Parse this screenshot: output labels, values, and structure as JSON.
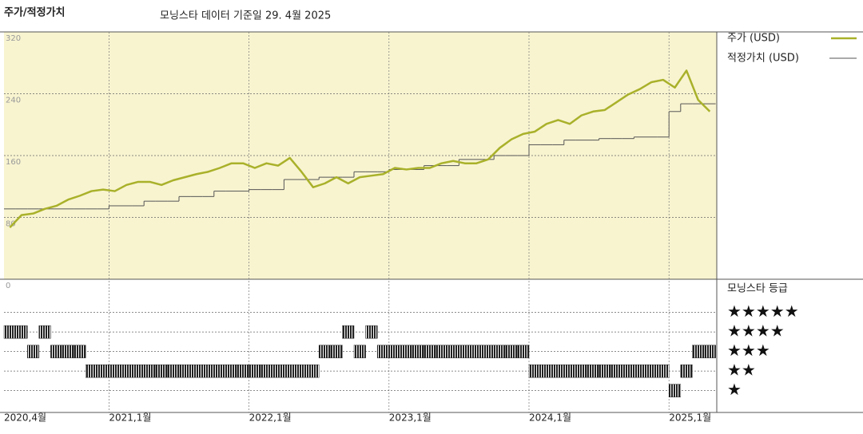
{
  "chart_data": [
    {
      "type": "line",
      "title": "주가/적정가치",
      "subtitle": "모닝스타 데이터 기준일 29. 4월 2025",
      "x": [
        "2020-04",
        "2020-05",
        "2020-06",
        "2020-07",
        "2020-08",
        "2020-09",
        "2020-10",
        "2020-11",
        "2020-12",
        "2021-01",
        "2021-02",
        "2021-03",
        "2021-04",
        "2021-05",
        "2021-06",
        "2021-07",
        "2021-08",
        "2021-09",
        "2021-10",
        "2021-11",
        "2021-12",
        "2022-01",
        "2022-02",
        "2022-03",
        "2022-04",
        "2022-05",
        "2022-06",
        "2022-07",
        "2022-08",
        "2022-09",
        "2022-10",
        "2022-11",
        "2022-12",
        "2023-01",
        "2023-02",
        "2023-03",
        "2023-04",
        "2023-05",
        "2023-06",
        "2023-07",
        "2023-08",
        "2023-09",
        "2023-10",
        "2023-11",
        "2023-12",
        "2024-01",
        "2024-02",
        "2024-03",
        "2024-04",
        "2024-05",
        "2024-06",
        "2024-07",
        "2024-08",
        "2024-09",
        "2024-10",
        "2024-11",
        "2024-12",
        "2025-01",
        "2025-02",
        "2025-03",
        "2025-04"
      ],
      "xticks": [
        {
          "value": "2020-04",
          "label": "2020,4월"
        },
        {
          "value": "2021-01",
          "label": "2021,1월"
        },
        {
          "value": "2022-01",
          "label": "2022,1월"
        },
        {
          "value": "2023-01",
          "label": "2023,1월"
        },
        {
          "value": "2024-01",
          "label": "2024,1월"
        },
        {
          "value": "2025-01",
          "label": "2025,1월"
        }
      ],
      "ylim": [
        0,
        320
      ],
      "yticks": [
        0,
        80,
        160,
        240,
        320
      ],
      "grid": true,
      "series": [
        {
          "name": "주가 (USD)",
          "color": "#a9b12a",
          "values": [
            67,
            83,
            85,
            91,
            95,
            103,
            108,
            114,
            116,
            114,
            122,
            126,
            126,
            122,
            128,
            132,
            136,
            139,
            144,
            150,
            150,
            144,
            150,
            147,
            157,
            139,
            119,
            124,
            132,
            124,
            132,
            134,
            136,
            144,
            142,
            144,
            144,
            150,
            153,
            150,
            150,
            155,
            170,
            181,
            188,
            191,
            201,
            206,
            201,
            212,
            217,
            219,
            229,
            239,
            246,
            255,
            258,
            248,
            270,
            232,
            217
          ]
        },
        {
          "name": "적정가치 (USD)",
          "color": "#555555",
          "values": [
            91,
            91,
            91,
            91,
            91,
            91,
            91,
            91,
            91,
            95,
            95,
            95,
            101,
            101,
            101,
            107,
            107,
            107,
            114,
            114,
            114,
            116,
            116,
            116,
            129,
            129,
            129,
            132,
            132,
            132,
            139,
            139,
            139,
            142,
            142,
            142,
            147,
            147,
            147,
            155,
            155,
            155,
            160,
            160,
            160,
            174,
            174,
            174,
            180,
            180,
            180,
            182,
            182,
            182,
            184,
            184,
            184,
            217,
            227,
            227,
            227
          ]
        }
      ]
    },
    {
      "type": "rating",
      "title": "모닝스타 등급",
      "color": "#222222",
      "x": [
        "2020-04",
        "2020-05",
        "2020-06",
        "2020-07",
        "2020-08",
        "2020-09",
        "2020-10",
        "2020-11",
        "2020-12",
        "2021-01",
        "2021-02",
        "2021-03",
        "2021-04",
        "2021-05",
        "2021-06",
        "2021-07",
        "2021-08",
        "2021-09",
        "2021-10",
        "2021-11",
        "2021-12",
        "2022-01",
        "2022-02",
        "2022-03",
        "2022-04",
        "2022-05",
        "2022-06",
        "2022-07",
        "2022-08",
        "2022-09",
        "2022-10",
        "2022-11",
        "2022-12",
        "2023-01",
        "2023-02",
        "2023-03",
        "2023-04",
        "2023-05",
        "2023-06",
        "2023-07",
        "2023-08",
        "2023-09",
        "2023-10",
        "2023-11",
        "2023-12",
        "2024-01",
        "2024-02",
        "2024-03",
        "2024-04",
        "2024-05",
        "2024-06",
        "2024-07",
        "2024-08",
        "2024-09",
        "2024-10",
        "2024-11",
        "2024-12",
        "2025-01",
        "2025-02",
        "2025-03",
        "2025-04"
      ],
      "values": [
        4,
        4,
        3,
        4,
        3,
        3,
        3,
        2,
        2,
        2,
        2,
        2,
        2,
        2,
        2,
        2,
        2,
        2,
        2,
        2,
        2,
        2,
        2,
        2,
        2,
        2,
        2,
        3,
        3,
        4,
        3,
        4,
        3,
        3,
        3,
        3,
        3,
        3,
        3,
        3,
        3,
        3,
        3,
        3,
        3,
        2,
        2,
        2,
        2,
        2,
        2,
        2,
        2,
        2,
        2,
        2,
        2,
        1,
        2,
        3,
        3
      ],
      "ylim": [
        0.7,
        6.7
      ],
      "yticks": [
        {
          "value": 5,
          "label": "★★★★★"
        },
        {
          "value": 4,
          "label": "★★★★"
        },
        {
          "value": 3,
          "label": "★★★"
        },
        {
          "value": 2,
          "label": "★★"
        },
        {
          "value": 1,
          "label": "★"
        }
      ]
    }
  ]
}
